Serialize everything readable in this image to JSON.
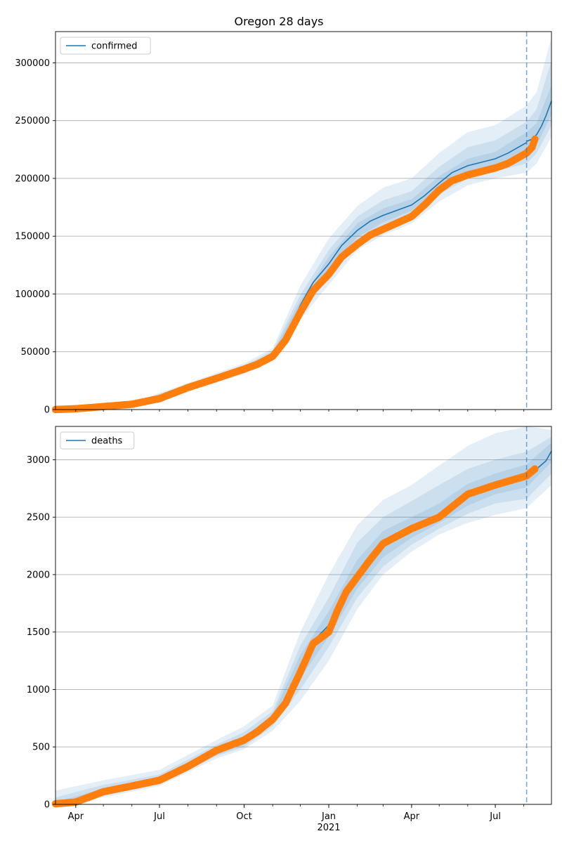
{
  "figure": {
    "title": "Oregon 28 days"
  },
  "colors": {
    "model_line": "#1f77b4",
    "observed": "#ff7f0e",
    "band": "#1f77b4",
    "today_line": "#1f77b4",
    "grid": "#b0b0b0"
  },
  "chart_data": [
    {
      "type": "line",
      "legend": "top-left",
      "grid": true,
      "xlim": [
        "2020-03-10",
        "2021-08-31"
      ],
      "ylim": [
        0,
        327000
      ],
      "yticks": [
        0,
        50000,
        100000,
        150000,
        200000,
        250000,
        300000
      ],
      "xticks_visible": false,
      "today": "2021-08-04",
      "model": {
        "name": "confirmed",
        "points": [
          [
            "2020-03-10",
            100
          ],
          [
            "2020-04-01",
            700
          ],
          [
            "2020-05-01",
            2800
          ],
          [
            "2020-06-01",
            4800
          ],
          [
            "2020-07-01",
            10000
          ],
          [
            "2020-08-01",
            19000
          ],
          [
            "2020-09-01",
            27500
          ],
          [
            "2020-10-01",
            35000
          ],
          [
            "2020-10-15",
            40000
          ],
          [
            "2020-11-01",
            47500
          ],
          [
            "2020-11-15",
            61000
          ],
          [
            "2020-12-01",
            90000
          ],
          [
            "2020-12-15",
            110000
          ],
          [
            "2021-01-01",
            126000
          ],
          [
            "2021-01-15",
            142000
          ],
          [
            "2021-02-01",
            155000
          ],
          [
            "2021-02-15",
            163000
          ],
          [
            "2021-03-01",
            168000
          ],
          [
            "2021-04-01",
            177000
          ],
          [
            "2021-04-15",
            185000
          ],
          [
            "2021-05-01",
            196000
          ],
          [
            "2021-05-15",
            205000
          ],
          [
            "2021-06-01",
            211000
          ],
          [
            "2021-07-01",
            217000
          ],
          [
            "2021-07-15",
            222000
          ],
          [
            "2021-08-04",
            231000
          ]
        ]
      },
      "forecast": [
        [
          "2021-08-04",
          232000
        ],
        [
          "2021-08-10",
          234000
        ],
        [
          "2021-08-15",
          238000
        ],
        [
          "2021-08-20",
          245000
        ],
        [
          "2021-08-25",
          254000
        ],
        [
          "2021-08-31",
          267000
        ]
      ],
      "bands": [
        {
          "opacity": 0.12,
          "points": [
            [
              "2020-03-10",
              0,
              500
            ],
            [
              "2020-06-01",
              4000,
              6000
            ],
            [
              "2020-08-01",
              16000,
              23000
            ],
            [
              "2020-10-01",
              31000,
              40000
            ],
            [
              "2020-11-01",
              43000,
              53000
            ],
            [
              "2020-12-01",
              78000,
              107000
            ],
            [
              "2021-01-01",
              108000,
              148000
            ],
            [
              "2021-02-01",
              138000,
              176000
            ],
            [
              "2021-03-01",
              151000,
              192000
            ],
            [
              "2021-04-01",
              161000,
              200000
            ],
            [
              "2021-05-01",
              180000,
              222000
            ],
            [
              "2021-06-01",
              194000,
              240000
            ],
            [
              "2021-07-01",
              200000,
              246000
            ],
            [
              "2021-08-04",
              205000,
              263000
            ],
            [
              "2021-08-15",
              213000,
              275000
            ],
            [
              "2021-08-31",
              236000,
              322000
            ]
          ]
        },
        {
          "opacity": 0.12,
          "points": [
            [
              "2020-03-10",
              0,
              300
            ],
            [
              "2020-06-01",
              4200,
              5600
            ],
            [
              "2020-08-01",
              17000,
              21500
            ],
            [
              "2020-10-01",
              32500,
              38000
            ],
            [
              "2020-11-01",
              45000,
              51000
            ],
            [
              "2020-12-01",
              83000,
              99000
            ],
            [
              "2021-01-01",
              114000,
              138000
            ],
            [
              "2021-02-01",
              144000,
              167000
            ],
            [
              "2021-03-01",
              157000,
              181000
            ],
            [
              "2021-04-01",
              167000,
              189000
            ],
            [
              "2021-05-01",
              186000,
              210000
            ],
            [
              "2021-06-01",
              200000,
              227000
            ],
            [
              "2021-07-01",
              206000,
              233000
            ],
            [
              "2021-08-04",
              213000,
              249000
            ],
            [
              "2021-08-15",
              222000,
              260000
            ],
            [
              "2021-08-31",
              246000,
              302000
            ]
          ]
        },
        {
          "opacity": 0.12,
          "points": [
            [
              "2020-03-10",
              0,
              200
            ],
            [
              "2020-06-01",
              4500,
              5200
            ],
            [
              "2020-08-01",
              18000,
              20200
            ],
            [
              "2020-10-01",
              33800,
              36500
            ],
            [
              "2020-11-01",
              46300,
              49000
            ],
            [
              "2020-12-01",
              86500,
              94000
            ],
            [
              "2021-01-01",
              120000,
              132000
            ],
            [
              "2021-02-01",
              149000,
              161000
            ],
            [
              "2021-03-01",
              162000,
              174000
            ],
            [
              "2021-04-01",
              172000,
              182000
            ],
            [
              "2021-05-01",
              191000,
              202000
            ],
            [
              "2021-06-01",
              205000,
              217000
            ],
            [
              "2021-07-01",
              211000,
              223000
            ],
            [
              "2021-08-04",
              222000,
              240000
            ],
            [
              "2021-08-15",
              229000,
              248000
            ],
            [
              "2021-08-31",
              255000,
              281000
            ]
          ]
        }
      ],
      "observed": [
        [
          "2020-03-10",
          50
        ],
        [
          "2020-04-01",
          700
        ],
        [
          "2020-05-01",
          2600
        ],
        [
          "2020-06-01",
          4600
        ],
        [
          "2020-07-01",
          9500
        ],
        [
          "2020-08-01",
          19000
        ],
        [
          "2020-09-01",
          27000
        ],
        [
          "2020-10-01",
          35000
        ],
        [
          "2020-10-15",
          39000
        ],
        [
          "2020-11-01",
          46000
        ],
        [
          "2020-11-15",
          60000
        ],
        [
          "2020-12-01",
          84000
        ],
        [
          "2020-12-15",
          103000
        ],
        [
          "2021-01-01",
          117000
        ],
        [
          "2021-01-15",
          132000
        ],
        [
          "2021-02-01",
          143000
        ],
        [
          "2021-02-15",
          151000
        ],
        [
          "2021-03-01",
          156000
        ],
        [
          "2021-04-01",
          167000
        ],
        [
          "2021-04-15",
          177000
        ],
        [
          "2021-05-01",
          190000
        ],
        [
          "2021-05-15",
          198000
        ],
        [
          "2021-06-01",
          203000
        ],
        [
          "2021-07-01",
          209000
        ],
        [
          "2021-07-15",
          213000
        ],
        [
          "2021-08-04",
          222000
        ],
        [
          "2021-08-10",
          227000
        ],
        [
          "2021-08-13",
          234000
        ]
      ]
    },
    {
      "type": "line",
      "legend": "top-left",
      "grid": true,
      "xlim": [
        "2020-03-10",
        "2021-08-31"
      ],
      "ylim": [
        0,
        3290
      ],
      "yticks": [
        0,
        500,
        1000,
        1500,
        2000,
        2500,
        3000
      ],
      "xticks": [
        {
          "date": "2020-04-01",
          "label": "Apr"
        },
        {
          "date": "2020-07-01",
          "label": "Jul"
        },
        {
          "date": "2020-10-01",
          "label": "Oct"
        },
        {
          "date": "2021-01-01",
          "label": "Jan"
        },
        {
          "date": "2021-04-01",
          "label": "Apr"
        },
        {
          "date": "2021-07-01",
          "label": "Jul"
        }
      ],
      "x_year_label": {
        "date": "2021-01-01",
        "label": "2021"
      },
      "today": "2021-08-04",
      "model": {
        "name": "deaths",
        "points": [
          [
            "2020-03-10",
            5
          ],
          [
            "2020-04-01",
            25
          ],
          [
            "2020-05-01",
            110
          ],
          [
            "2020-06-01",
            165
          ],
          [
            "2020-07-01",
            210
          ],
          [
            "2020-08-01",
            310
          ],
          [
            "2020-09-01",
            450
          ],
          [
            "2020-10-01",
            550
          ],
          [
            "2020-10-15",
            620
          ],
          [
            "2020-11-01",
            740
          ],
          [
            "2020-11-15",
            900
          ],
          [
            "2020-12-01",
            1200
          ],
          [
            "2020-12-15",
            1420
          ],
          [
            "2021-01-01",
            1560
          ],
          [
            "2021-01-15",
            1800
          ],
          [
            "2021-02-01",
            2000
          ],
          [
            "2021-02-15",
            2150
          ],
          [
            "2021-03-01",
            2270
          ],
          [
            "2021-04-01",
            2400
          ],
          [
            "2021-05-01",
            2520
          ],
          [
            "2021-06-01",
            2690
          ],
          [
            "2021-07-01",
            2790
          ],
          [
            "2021-08-04",
            2860
          ]
        ]
      },
      "forecast": [
        [
          "2021-08-04",
          2860
        ],
        [
          "2021-08-15",
          2920
        ],
        [
          "2021-08-25",
          2990
        ],
        [
          "2021-08-31",
          3075
        ]
      ],
      "bands": [
        {
          "opacity": 0.12,
          "points": [
            [
              "2020-03-10",
              0,
              120
            ],
            [
              "2020-05-01",
              60,
              210
            ],
            [
              "2020-07-01",
              160,
              300
            ],
            [
              "2020-09-01",
              400,
              560
            ],
            [
              "2020-10-01",
              480,
              680
            ],
            [
              "2020-11-01",
              640,
              860
            ],
            [
              "2020-12-01",
              900,
              1500
            ],
            [
              "2021-01-01",
              1250,
              2000
            ],
            [
              "2021-02-01",
              1700,
              2430
            ],
            [
              "2021-03-01",
              2000,
              2650
            ],
            [
              "2021-04-01",
              2200,
              2780
            ],
            [
              "2021-05-01",
              2350,
              2950
            ],
            [
              "2021-06-01",
              2450,
              3120
            ],
            [
              "2021-07-01",
              2520,
              3230
            ],
            [
              "2021-08-04",
              2580,
              3290
            ],
            [
              "2021-08-31",
              2780,
              3260
            ]
          ]
        },
        {
          "opacity": 0.12,
          "points": [
            [
              "2020-03-10",
              0,
              60
            ],
            [
              "2020-05-01",
              75,
              170
            ],
            [
              "2020-07-01",
              175,
              260
            ],
            [
              "2020-09-01",
              420,
              520
            ],
            [
              "2020-10-01",
              500,
              630
            ],
            [
              "2020-11-01",
              680,
              810
            ],
            [
              "2020-12-01",
              1000,
              1380
            ],
            [
              "2021-01-01",
              1370,
              1800
            ],
            [
              "2021-02-01",
              1800,
              2280
            ],
            [
              "2021-03-01",
              2070,
              2500
            ],
            [
              "2021-04-01",
              2260,
              2640
            ],
            [
              "2021-05-01",
              2400,
              2780
            ],
            [
              "2021-06-01",
              2530,
              2920
            ],
            [
              "2021-07-01",
              2620,
              3000
            ],
            [
              "2021-08-04",
              2660,
              3070
            ],
            [
              "2021-08-31",
              2880,
              3200
            ]
          ]
        },
        {
          "opacity": 0.12,
          "points": [
            [
              "2020-03-10",
              0,
              20
            ],
            [
              "2020-05-01",
              90,
              135
            ],
            [
              "2020-07-01",
              190,
              230
            ],
            [
              "2020-09-01",
              430,
              480
            ],
            [
              "2020-10-01",
              520,
              590
            ],
            [
              "2020-11-01",
              710,
              780
            ],
            [
              "2020-12-01",
              1100,
              1300
            ],
            [
              "2021-01-01",
              1460,
              1680
            ],
            [
              "2021-02-01",
              1880,
              2130
            ],
            [
              "2021-03-01",
              2150,
              2380
            ],
            [
              "2021-04-01",
              2320,
              2500
            ],
            [
              "2021-05-01",
              2450,
              2620
            ],
            [
              "2021-06-01",
              2600,
              2790
            ],
            [
              "2021-07-01",
              2700,
              2880
            ],
            [
              "2021-08-04",
              2760,
              2960
            ],
            [
              "2021-08-31",
              2980,
              3150
            ]
          ]
        }
      ],
      "observed": [
        [
          "2020-03-10",
          5
        ],
        [
          "2020-04-01",
          20
        ],
        [
          "2020-05-01",
          110
        ],
        [
          "2020-06-01",
          160
        ],
        [
          "2020-07-01",
          210
        ],
        [
          "2020-08-01",
          330
        ],
        [
          "2020-09-01",
          470
        ],
        [
          "2020-10-01",
          560
        ],
        [
          "2020-10-15",
          630
        ],
        [
          "2020-11-01",
          740
        ],
        [
          "2020-11-15",
          880
        ],
        [
          "2020-12-01",
          1150
        ],
        [
          "2020-12-15",
          1400
        ],
        [
          "2021-01-01",
          1500
        ],
        [
          "2021-01-10",
          1680
        ],
        [
          "2021-01-20",
          1850
        ],
        [
          "2021-02-01",
          1980
        ],
        [
          "2021-02-15",
          2130
        ],
        [
          "2021-03-01",
          2270
        ],
        [
          "2021-04-01",
          2400
        ],
        [
          "2021-05-01",
          2500
        ],
        [
          "2021-06-01",
          2700
        ],
        [
          "2021-07-01",
          2780
        ],
        [
          "2021-08-04",
          2860
        ],
        [
          "2021-08-13",
          2920
        ]
      ]
    }
  ]
}
